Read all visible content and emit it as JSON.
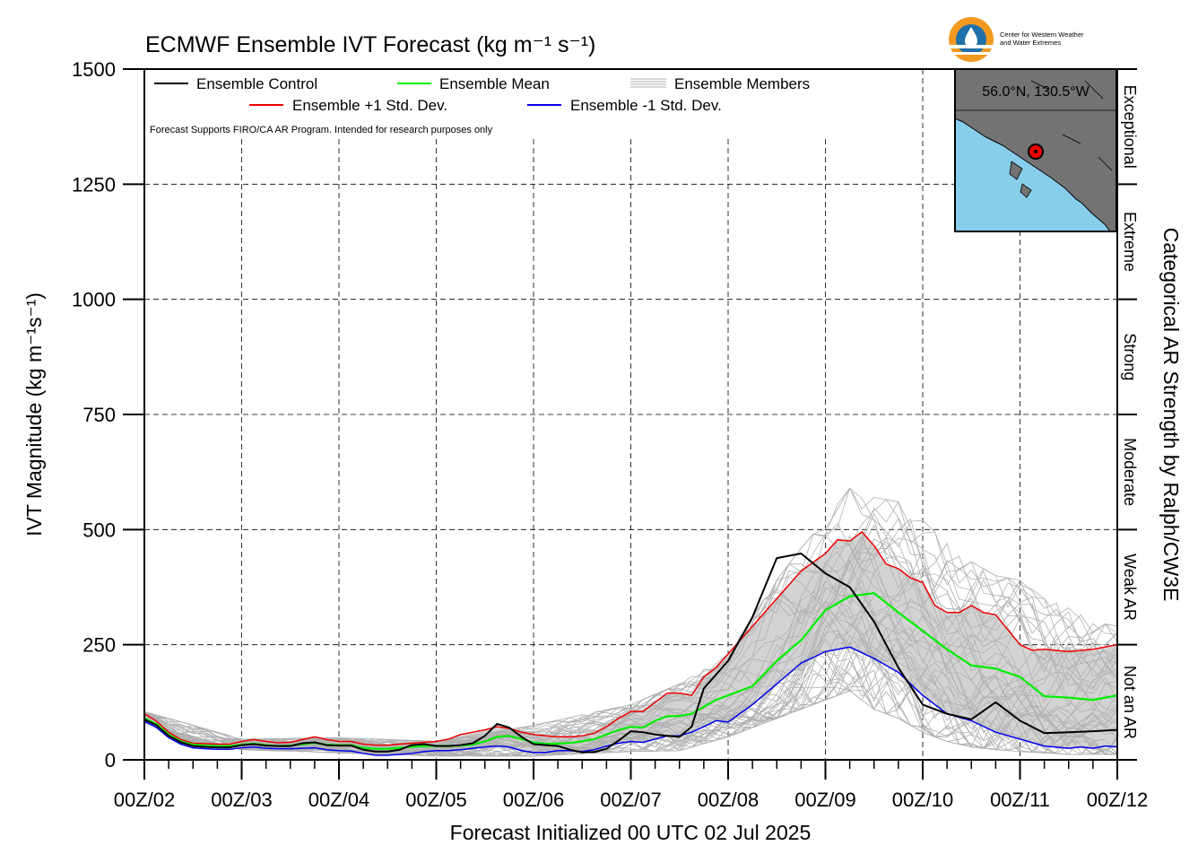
{
  "header": {
    "title": "ECMWF Ensemble IVT Forecast (kg m⁻¹ s⁻¹)",
    "logo_text_1": "Center for Western Weather",
    "logo_text_2": "and Water Extremes"
  },
  "legend": {
    "control": "Ensemble Control",
    "mean": "Ensemble Mean",
    "members": "Ensemble Members",
    "plus_std": "Ensemble +1 Std. Dev.",
    "minus_std": "Ensemble -1 Std. Dev.",
    "note": "Forecast Supports FIRO/CA AR Program. Intended for research purposes only"
  },
  "inset": {
    "location": "56.0°N, 130.5°W"
  },
  "colors": {
    "control": "#000000",
    "mean": "#00ee00",
    "plus_std": "#ee0000",
    "minus_std": "#0000ee",
    "members": "#b0b0b0",
    "spread_fill": "#d3d3d3",
    "ocean": "#87ceeb",
    "land": "#737373",
    "logo_orange": "#f29a1f",
    "logo_blue": "#1f6fa8"
  },
  "chart_data": {
    "type": "line",
    "xlabel": "Forecast Initialized 00 UTC 02 Jul 2025",
    "ylabel": "IVT Magnitude (kg m⁻¹s⁻¹)",
    "right_label": "Categorical AR Strength by Ralph/CW3E",
    "ylim": [
      0,
      1500
    ],
    "yticks": [
      0,
      250,
      500,
      750,
      1000,
      1250,
      1500
    ],
    "x_tick_labels": [
      "00Z/02",
      "00Z/03",
      "00Z/04",
      "00Z/05",
      "00Z/06",
      "00Z/07",
      "00Z/08",
      "00Z/09",
      "00Z/10",
      "00Z/11",
      "00Z/12"
    ],
    "x_unit": "hours since 00Z 02 Jul 2025",
    "xlim": [
      0,
      240
    ],
    "categories_right": [
      {
        "label": "Not an AR",
        "range": [
          0,
          250
        ]
      },
      {
        "label": "Weak AR",
        "range": [
          250,
          500
        ]
      },
      {
        "label": "Moderate",
        "range": [
          500,
          750
        ]
      },
      {
        "label": "Strong",
        "range": [
          750,
          1000
        ]
      },
      {
        "label": "Extreme",
        "range": [
          1000,
          1250
        ]
      },
      {
        "label": "Exceptional",
        "range": [
          1250,
          1500
        ]
      }
    ],
    "grid": true,
    "x": [
      0,
      3,
      6,
      9,
      12,
      15,
      18,
      21,
      24,
      27,
      30,
      33,
      36,
      39,
      42,
      45,
      48,
      51,
      54,
      57,
      60,
      63,
      66,
      69,
      72,
      75,
      78,
      81,
      84,
      87,
      90,
      93,
      96,
      99,
      102,
      105,
      108,
      111,
      114,
      117,
      120,
      123,
      126,
      129,
      132,
      135,
      138,
      141,
      144,
      150,
      156,
      162,
      168,
      174,
      180,
      186,
      192,
      198,
      204,
      210,
      216,
      222,
      228,
      234,
      240
    ],
    "series": [
      {
        "name": "Ensemble Control",
        "values": [
          88,
          75,
          52,
          38,
          30,
          28,
          27,
          27,
          32,
          34,
          31,
          30,
          30,
          36,
          38,
          32,
          31,
          31,
          22,
          18,
          18,
          22,
          32,
          34,
          30,
          30,
          32,
          36,
          52,
          78,
          70,
          50,
          34,
          32,
          30,
          22,
          16,
          17,
          24,
          42,
          62,
          60,
          55,
          52,
          50,
          72,
          155,
          185,
          215,
          310,
          438,
          448,
          405,
          375,
          300,
          200,
          120,
          100,
          88,
          125,
          85,
          58,
          60,
          62,
          65
        ]
      },
      {
        "name": "Ensemble Mean",
        "values": [
          90,
          78,
          55,
          40,
          33,
          31,
          30,
          30,
          33,
          35,
          32,
          30,
          31,
          34,
          37,
          33,
          32,
          32,
          26,
          24,
          24,
          26,
          28,
          30,
          30,
          30,
          31,
          33,
          40,
          50,
          52,
          45,
          38,
          35,
          35,
          37,
          40,
          45,
          55,
          65,
          72,
          70,
          85,
          95,
          95,
          100,
          115,
          130,
          140,
          160,
          215,
          260,
          325,
          355,
          362,
          320,
          280,
          240,
          205,
          198,
          180,
          138,
          135,
          130,
          140
        ]
      },
      {
        "name": "Ensemble +1 Std. Dev.",
        "values": [
          100,
          84,
          60,
          44,
          36,
          35,
          34,
          34,
          40,
          44,
          40,
          37,
          38,
          44,
          50,
          44,
          40,
          40,
          34,
          32,
          32,
          34,
          36,
          38,
          40,
          45,
          55,
          60,
          65,
          72,
          68,
          60,
          55,
          52,
          50,
          50,
          52,
          58,
          72,
          90,
          105,
          105,
          125,
          145,
          145,
          140,
          180,
          200,
          230,
          290,
          350,
          410,
          448,
          478,
          475,
          495,
          465,
          425,
          415,
          395,
          385,
          335,
          320,
          320,
          335,
          320,
          315,
          250,
          238,
          240,
          235,
          240,
          250
        ],
        "x": [
          0,
          3,
          6,
          9,
          12,
          15,
          18,
          21,
          24,
          27,
          30,
          33,
          36,
          39,
          42,
          45,
          48,
          51,
          54,
          57,
          60,
          63,
          66,
          69,
          72,
          75,
          78,
          81,
          84,
          87,
          90,
          93,
          96,
          99,
          102,
          105,
          108,
          111,
          114,
          117,
          120,
          123,
          126,
          129,
          132,
          135,
          138,
          141,
          144,
          150,
          156,
          162,
          168,
          171,
          174,
          177,
          180,
          183,
          186,
          189,
          192,
          195,
          198,
          201,
          204,
          207,
          210,
          216,
          219,
          222,
          228,
          234,
          240
        ]
      },
      {
        "name": "Ensemble -1 Std. Dev.",
        "values": [
          84,
          70,
          48,
          34,
          26,
          24,
          23,
          23,
          26,
          28,
          25,
          24,
          24,
          25,
          26,
          22,
          20,
          19,
          14,
          10,
          10,
          12,
          14,
          18,
          20,
          20,
          22,
          25,
          28,
          30,
          28,
          20,
          16,
          16,
          20,
          20,
          18,
          22,
          30,
          36,
          40,
          38,
          45,
          52,
          52,
          60,
          72,
          85,
          82,
          120,
          165,
          210,
          235,
          245,
          220,
          190,
          140,
          100,
          85,
          60,
          45,
          30,
          25,
          28,
          25,
          30,
          28
        ],
        "x": [
          0,
          3,
          6,
          9,
          12,
          15,
          18,
          21,
          24,
          27,
          30,
          33,
          36,
          39,
          42,
          45,
          48,
          51,
          54,
          57,
          60,
          63,
          66,
          69,
          72,
          75,
          78,
          81,
          84,
          87,
          90,
          93,
          96,
          99,
          102,
          105,
          108,
          111,
          114,
          117,
          120,
          123,
          126,
          129,
          132,
          135,
          138,
          141,
          144,
          150,
          156,
          162,
          168,
          174,
          180,
          186,
          192,
          198,
          204,
          210,
          216,
          222,
          228,
          231,
          234,
          237,
          240
        ]
      }
    ],
    "members_envelope": {
      "x": [
        0,
        24,
        48,
        72,
        96,
        120,
        132,
        144,
        156,
        162,
        168,
        174,
        180,
        186,
        192,
        198,
        204,
        210,
        216,
        222,
        228,
        234,
        240
      ],
      "upper": [
        105,
        45,
        48,
        40,
        75,
        120,
        165,
        230,
        390,
        460,
        520,
        590,
        570,
        560,
        520,
        470,
        430,
        400,
        390,
        350,
        330,
        300,
        290
      ],
      "lower": [
        80,
        22,
        15,
        8,
        8,
        18,
        20,
        50,
        90,
        110,
        130,
        150,
        110,
        90,
        60,
        40,
        28,
        22,
        18,
        15,
        12,
        12,
        12
      ]
    }
  }
}
